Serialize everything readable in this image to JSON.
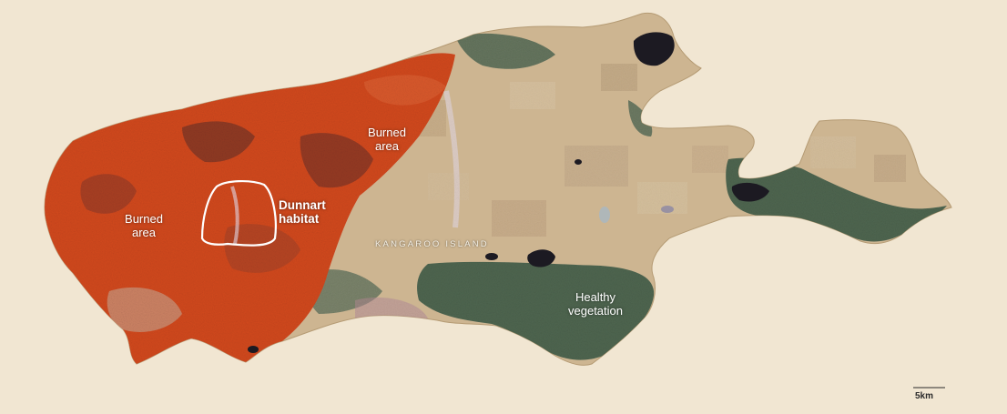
{
  "map": {
    "region_label": "KANGAROO ISLAND",
    "labels": {
      "burned_area_west": "Burned\narea",
      "burned_area_north": "Burned\narea",
      "dunnart_habitat": "Dunnart\nhabitat",
      "healthy_vegetation": "Healthy\nvegetation"
    },
    "scale_bar": {
      "label": "5km"
    }
  },
  "colors": {
    "background": "#f1e6d2",
    "farmland": "#cdb591",
    "burned": "#d2491f",
    "burned_dark": "#7a3526",
    "vegetation": "#4f6650",
    "lake": "#1c1a22",
    "habitat_outline": "#ffffff"
  }
}
